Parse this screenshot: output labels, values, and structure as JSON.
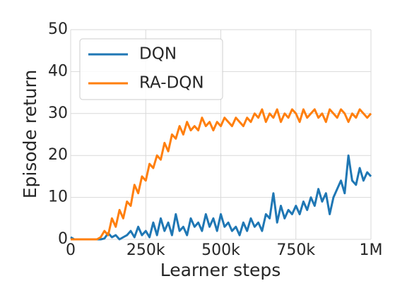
{
  "chart_data": {
    "type": "line",
    "xlabel": "Learner steps",
    "ylabel": "Episode return",
    "x": [
      0,
      12500,
      25000,
      37500,
      50000,
      62500,
      75000,
      87500,
      100000,
      112500,
      125000,
      137500,
      150000,
      162500,
      175000,
      187500,
      200000,
      212500,
      225000,
      237500,
      250000,
      262500,
      275000,
      287500,
      300000,
      312500,
      325000,
      337500,
      350000,
      362500,
      375000,
      387500,
      400000,
      412500,
      425000,
      437500,
      450000,
      462500,
      475000,
      487500,
      500000,
      512500,
      525000,
      537500,
      550000,
      562500,
      575000,
      587500,
      600000,
      612500,
      625000,
      637500,
      650000,
      662500,
      675000,
      687500,
      700000,
      712500,
      725000,
      737500,
      750000,
      762500,
      775000,
      787500,
      800000,
      812500,
      825000,
      837500,
      850000,
      862500,
      875000,
      887500,
      900000,
      912500,
      925000,
      937500,
      950000,
      962500,
      975000,
      987500,
      1000000
    ],
    "series": [
      {
        "name": "DQN",
        "color": "#1f77b4",
        "values": [
          0.5,
          0,
          0,
          0,
          0,
          0,
          0,
          0,
          0,
          0.2,
          1.5,
          0.5,
          1,
          0,
          0.5,
          1,
          2,
          0.5,
          3,
          1,
          2,
          0.5,
          4,
          1,
          5,
          2,
          4,
          1,
          6,
          2,
          3,
          1,
          5,
          3,
          4,
          2,
          6,
          3,
          5,
          2,
          6,
          3,
          4,
          2,
          3,
          1,
          4,
          2,
          5,
          3,
          4,
          2,
          6,
          5,
          11,
          4,
          8,
          5,
          7,
          6,
          8,
          6,
          9,
          7,
          10,
          8,
          12,
          9,
          11,
          6,
          10,
          12,
          14,
          11,
          20,
          14,
          13,
          17,
          14,
          16,
          15
        ]
      },
      {
        "name": "RA-DQN",
        "color": "#ff7f0e",
        "values": [
          0,
          0,
          0,
          0,
          0,
          0,
          0,
          0,
          0.5,
          2,
          1,
          5,
          3,
          7,
          5,
          9,
          8,
          13,
          11,
          15,
          14,
          18,
          17,
          20,
          19,
          23,
          21,
          25,
          24,
          27,
          25,
          28,
          26,
          27,
          26,
          29,
          27,
          28,
          26,
          28,
          27,
          29,
          28,
          27,
          29,
          28,
          27,
          29,
          28,
          30,
          29,
          31,
          28,
          30,
          29,
          31,
          28,
          30,
          29,
          31,
          30,
          28,
          31,
          29,
          30,
          31,
          29,
          30,
          28,
          31,
          30,
          29,
          31,
          30,
          28,
          30,
          29,
          31,
          30,
          29,
          30
        ]
      }
    ],
    "xlim": [
      0,
      1000000
    ],
    "xticks": [
      0,
      {
        "value": 250000,
        "label": "250k"
      },
      {
        "value": 500000,
        "label": "500k"
      },
      {
        "value": 750000,
        "label": "750k"
      },
      {
        "value": 1000000,
        "label": "1M"
      }
    ],
    "ylim": [
      0,
      50
    ],
    "yticks": [
      0,
      10,
      20,
      30,
      40,
      50
    ],
    "grid": true,
    "legend": "upper left"
  }
}
